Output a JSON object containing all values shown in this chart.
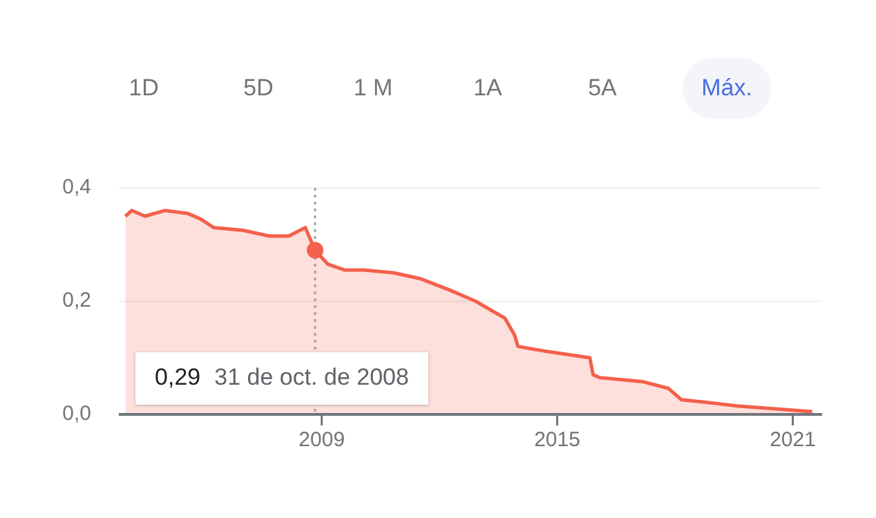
{
  "chart_data": {
    "type": "area",
    "x": [
      "2004-01",
      "2004-03",
      "2004-07",
      "2005-01",
      "2005-08",
      "2005-12",
      "2006-04",
      "2007-01",
      "2007-09",
      "2008-03",
      "2008-08",
      "2008-10-31",
      "2009-03",
      "2009-08",
      "2010-02",
      "2010-11",
      "2011-07",
      "2012-04",
      "2012-12",
      "2013-09",
      "2013-12",
      "2014-01",
      "2014-09",
      "2015-11",
      "2015-12",
      "2016-02",
      "2017-03",
      "2017-11",
      "2018-03",
      "2018-08",
      "2019-08",
      "2021-07"
    ],
    "series": [
      {
        "color": "#f4604b",
        "values": [
          0.35,
          0.36,
          0.35,
          0.36,
          0.355,
          0.345,
          0.33,
          0.325,
          0.315,
          0.315,
          0.33,
          0.29,
          0.265,
          0.255,
          0.255,
          0.25,
          0.24,
          0.22,
          0.2,
          0.17,
          0.14,
          0.12,
          0.112,
          0.1,
          0.07,
          0.065,
          0.058,
          0.046,
          0.026,
          0.023,
          0.015,
          0.005
        ]
      }
    ],
    "xlim": [
      "2003-11",
      "2021-10"
    ],
    "xticks": [
      "2009",
      "2015",
      "2021"
    ],
    "ylim": [
      0,
      0.4
    ],
    "yticks": [
      {
        "value": 0,
        "label": "0,0"
      },
      {
        "value": 0.2,
        "label": "0,2"
      },
      {
        "value": 0.4,
        "label": "0,4"
      }
    ],
    "grid": "y",
    "legend": false,
    "marker": "none",
    "line_style": "solid",
    "ref_lines": [
      {
        "axis": "x",
        "value": "2008-10-31",
        "line_style": "dotted",
        "color": "#9aa0a6"
      }
    ],
    "annotations": [
      "1D",
      "5D",
      "1 M",
      "1A",
      "5A",
      "Máx.",
      "0,29",
      "31 de oct. de 2008"
    ]
  }
}
